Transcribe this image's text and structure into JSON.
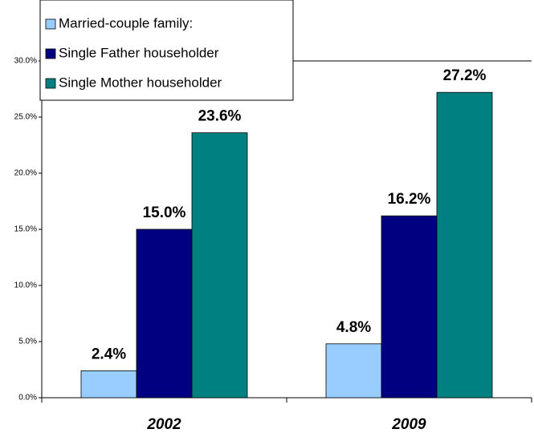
{
  "chart_data": {
    "type": "bar",
    "categories": [
      "2002",
      "2009"
    ],
    "series": [
      {
        "name": "Married-couple family:",
        "color": "#99ccff",
        "values": [
          2.4,
          4.8
        ],
        "value_labels": [
          "2.4%",
          "4.8%"
        ]
      },
      {
        "name": "Single Father householder",
        "color": "#000080",
        "values": [
          15.0,
          16.2
        ],
        "value_labels": [
          "15.0%",
          "16.2%"
        ]
      },
      {
        "name": "Single Mother householder",
        "color": "#008080",
        "values": [
          23.6,
          27.2
        ],
        "value_labels": [
          "23.6%",
          "27.2%"
        ]
      }
    ],
    "ylim": [
      0,
      30
    ],
    "yticks": [
      {
        "value": 0,
        "label": "0.0%"
      },
      {
        "value": 5,
        "label": "5.0%"
      },
      {
        "value": 10,
        "label": "10.0%"
      },
      {
        "value": 15,
        "label": "15.0%"
      },
      {
        "value": 20,
        "label": "20.0%"
      },
      {
        "value": 25,
        "label": "25.0%"
      },
      {
        "value": 30,
        "label": "30.0%"
      }
    ],
    "legend": "top-left"
  }
}
